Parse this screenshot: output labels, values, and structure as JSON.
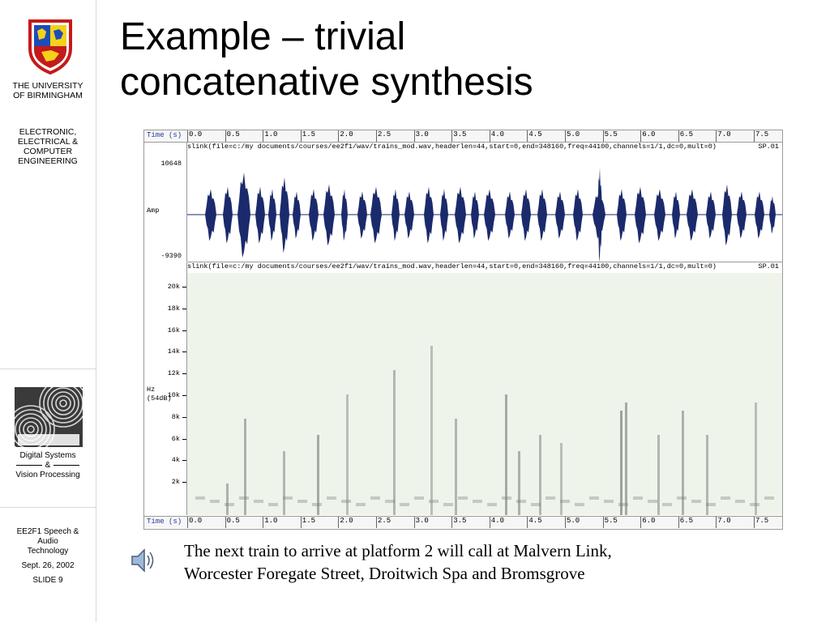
{
  "sidebar": {
    "university": [
      "THE UNIVERSITY",
      "OF BIRMINGHAM"
    ],
    "department": [
      "ELECTRONIC,",
      "ELECTRICAL &",
      "COMPUTER",
      "ENGINEERING"
    ],
    "group": [
      "Digital Systems",
      "&",
      "Vision Processing"
    ],
    "course": [
      "EE2F1 Speech &",
      "Audio",
      "Technology"
    ],
    "date": "Sept. 26, 2002",
    "slide": "SLIDE 9"
  },
  "slide": {
    "title_line1": "Example – trivial",
    "title_line2": "concatenative synthesis"
  },
  "viewer": {
    "time_label": "Time (s)",
    "time_ticks": [
      "0.0",
      "0.5",
      "1.0",
      "1.5",
      "2.0",
      "2.5",
      "3.0",
      "3.5",
      "4.0",
      "4.5",
      "5.0",
      "5.5",
      "6.0",
      "6.5",
      "7.0",
      "7.5"
    ],
    "wave_header": "slink(file=c:/my documents/courses/ee2f1/wav/trains_mod.wav,headerlen=44,start=0,end=348160,freq=44100,channels=1/1,dc=0,mult=0)",
    "spec_header": "slink(file=c:/my documents/courses/ee2f1/wav/trains_mod.wav,headerlen=44,start=0,end=348160,freq=44100,channels=1/1,dc=0,mult=0)",
    "wave_channel": "SP.01",
    "spec_channel": "SP.01",
    "amp_max": "10648",
    "amp_label": "Amp",
    "amp_min": "-9390",
    "freq_ticks": [
      "20k",
      "18k",
      "16k",
      "14k",
      "12k",
      "10k",
      "8k",
      "6k",
      "4k",
      "2k"
    ],
    "freq_label": "Hz",
    "freq_db": "(54dB)",
    "colors": {
      "wave": "#1b2a6b",
      "spectro_bg": "#eef4ea",
      "time_label": "#1f3d9e"
    }
  },
  "caption": {
    "line1": "The next train to arrive at platform 2 will call at Malvern Link,",
    "line2": "Worcester Foregate Street, Droitwich Spa and Bromsgrove"
  },
  "icons": {
    "speaker": "speaker-icon",
    "crest": "university-crest-icon",
    "dsp_logo": "dsp-pattern-icon"
  }
}
